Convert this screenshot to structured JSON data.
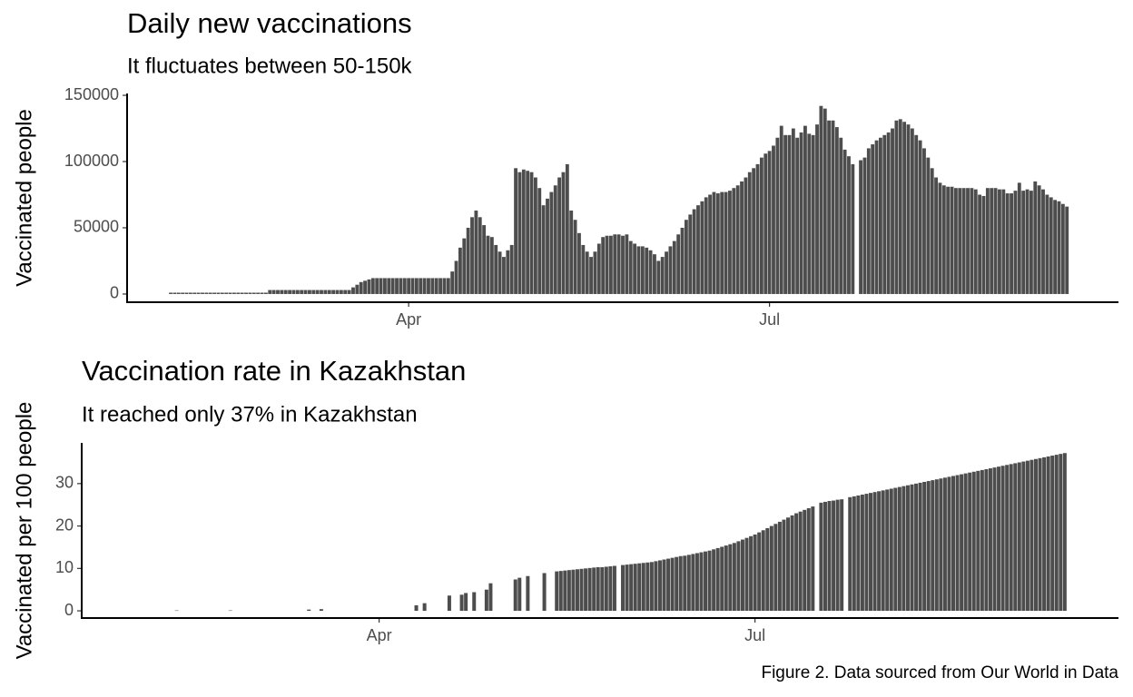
{
  "chart_data": [
    {
      "type": "bar",
      "title": "Daily new vaccinations",
      "subtitle": "It fluctuates between 50-150k",
      "y_label": "Vaccinated people",
      "color": "#4d4d4d",
      "xlim": [
        20,
        270
      ],
      "ylim": [
        -6200,
        151400
      ],
      "xticks": [
        {
          "value": 91,
          "label": "Apr"
        },
        {
          "value": 182,
          "label": "Jul"
        }
      ],
      "yticks": [
        0,
        50000,
        100000,
        150000
      ],
      "x": [
        31,
        32,
        33,
        34,
        35,
        36,
        37,
        38,
        39,
        40,
        41,
        42,
        43,
        44,
        45,
        46,
        47,
        48,
        49,
        50,
        51,
        52,
        53,
        54,
        55,
        56,
        57,
        58,
        59,
        60,
        61,
        62,
        63,
        64,
        65,
        66,
        67,
        68,
        69,
        70,
        71,
        72,
        73,
        74,
        75,
        76,
        77,
        78,
        79,
        80,
        81,
        82,
        83,
        84,
        85,
        86,
        87,
        88,
        89,
        90,
        91,
        92,
        93,
        94,
        95,
        96,
        97,
        98,
        99,
        100,
        101,
        102,
        103,
        104,
        105,
        106,
        107,
        108,
        109,
        110,
        111,
        112,
        113,
        114,
        115,
        116,
        117,
        118,
        119,
        120,
        121,
        122,
        123,
        124,
        125,
        126,
        127,
        128,
        129,
        130,
        131,
        132,
        133,
        134,
        135,
        136,
        137,
        138,
        139,
        140,
        141,
        142,
        143,
        144,
        145,
        146,
        147,
        148,
        149,
        150,
        151,
        152,
        153,
        154,
        155,
        156,
        157,
        158,
        159,
        160,
        161,
        162,
        163,
        164,
        165,
        166,
        167,
        168,
        169,
        170,
        171,
        172,
        173,
        174,
        175,
        176,
        177,
        178,
        179,
        180,
        181,
        182,
        183,
        184,
        185,
        186,
        187,
        188,
        189,
        190,
        191,
        192,
        193,
        194,
        195,
        196,
        197,
        198,
        199,
        200,
        201,
        202,
        203,
        204,
        205,
        206,
        207,
        208,
        209,
        210,
        211,
        212,
        213,
        214,
        215,
        216,
        217,
        218,
        219,
        220,
        221,
        222,
        223,
        224,
        225,
        226,
        227,
        228,
        229,
        230,
        231,
        232,
        233,
        234,
        235,
        236,
        237,
        238,
        239,
        240,
        241,
        242,
        243,
        244,
        245,
        246,
        247,
        248,
        249,
        250,
        251,
        252,
        253,
        254,
        255,
        256,
        257
      ],
      "values": [
        1000,
        1000,
        1000,
        1000,
        1000,
        1000,
        1000,
        1000,
        1000,
        1000,
        1000,
        1000,
        1000,
        1000,
        1000,
        1000,
        1000,
        1000,
        1000,
        1000,
        1000,
        1000,
        1000,
        1000,
        1000,
        3000,
        3000,
        3000,
        3000,
        3000,
        3000,
        3000,
        3000,
        3000,
        3000,
        3000,
        3000,
        3000,
        3000,
        3000,
        3000,
        3000,
        3000,
        3000,
        3000,
        3000,
        5000,
        7000,
        9000,
        10000,
        11000,
        12000,
        12000,
        12000,
        12000,
        12000,
        12000,
        12000,
        12000,
        12000,
        12000,
        12000,
        12000,
        12000,
        12000,
        12000,
        12000,
        12000,
        12000,
        12000,
        12000,
        17000,
        25000,
        35000,
        42000,
        50000,
        58000,
        63000,
        58000,
        52000,
        44000,
        43000,
        37000,
        32000,
        28000,
        33000,
        37000,
        95000,
        92000,
        94000,
        93000,
        92000,
        88000,
        80000,
        67000,
        72000,
        77000,
        82000,
        88000,
        92000,
        98000,
        63000,
        56000,
        46000,
        37000,
        32000,
        28000,
        32000,
        38000,
        43000,
        44000,
        44000,
        45000,
        45000,
        44000,
        45000,
        40000,
        38000,
        36000,
        36000,
        35000,
        33000,
        30000,
        25000,
        28000,
        32000,
        36000,
        40000,
        45000,
        50000,
        56000,
        60000,
        64000,
        67000,
        70000,
        73000,
        75000,
        77000,
        76000,
        77000,
        77000,
        78000,
        80000,
        82000,
        85000,
        88000,
        92000,
        95000,
        98000,
        103000,
        106000,
        108000,
        112000,
        118000,
        127000,
        120000,
        120000,
        125000,
        118000,
        122000,
        127000,
        121000,
        120000,
        128000,
        142000,
        140000,
        131000,
        131000,
        126000,
        118000,
        109000,
        104000,
        98000,
        null,
        101000,
        103000,
        110000,
        113000,
        116000,
        118000,
        120000,
        122000,
        125000,
        131000,
        132000,
        130000,
        128000,
        125000,
        120000,
        116000,
        110000,
        103000,
        95000,
        88000,
        84000,
        82000,
        81000,
        81000,
        80000,
        80000,
        80000,
        80000,
        80000,
        79000,
        75000,
        74000,
        80000,
        80000,
        80000,
        79000,
        79000,
        76000,
        76000,
        78000,
        84000,
        78000,
        79000,
        78000,
        85000,
        82000,
        79000,
        75000,
        73000,
        71000,
        70000,
        68000,
        66000
      ]
    },
    {
      "type": "bar",
      "title": "Vaccination rate in Kazakhstan",
      "subtitle": "It reached only 37% in Kazakhstan",
      "y_label": "Vaccinated per 100 people",
      "color": "#4d4d4d",
      "xlim": [
        19,
        270
      ],
      "ylim": [
        -1.7,
        39.6
      ],
      "xticks": [
        {
          "value": 91,
          "label": "Apr"
        },
        {
          "value": 182,
          "label": "Jul"
        }
      ],
      "yticks": [
        0,
        10,
        20,
        30
      ],
      "x": [
        31,
        32,
        33,
        34,
        35,
        36,
        37,
        38,
        39,
        40,
        41,
        42,
        43,
        44,
        45,
        46,
        47,
        48,
        49,
        50,
        51,
        52,
        53,
        54,
        55,
        56,
        57,
        58,
        59,
        60,
        61,
        62,
        63,
        64,
        65,
        66,
        67,
        68,
        69,
        70,
        71,
        72,
        73,
        74,
        75,
        76,
        77,
        78,
        79,
        80,
        81,
        82,
        83,
        84,
        85,
        86,
        87,
        88,
        89,
        90,
        91,
        92,
        93,
        94,
        95,
        96,
        97,
        98,
        99,
        100,
        101,
        102,
        103,
        104,
        105,
        106,
        107,
        108,
        109,
        110,
        111,
        112,
        113,
        114,
        115,
        116,
        117,
        118,
        119,
        120,
        121,
        122,
        123,
        124,
        125,
        126,
        127,
        128,
        129,
        130,
        131,
        132,
        133,
        134,
        135,
        136,
        137,
        138,
        139,
        140,
        141,
        142,
        143,
        144,
        145,
        146,
        147,
        148,
        149,
        150,
        151,
        152,
        153,
        154,
        155,
        156,
        157,
        158,
        159,
        160,
        161,
        162,
        163,
        164,
        165,
        166,
        167,
        168,
        169,
        170,
        171,
        172,
        173,
        174,
        175,
        176,
        177,
        178,
        179,
        180,
        181,
        182,
        183,
        184,
        185,
        186,
        187,
        188,
        189,
        190,
        191,
        192,
        193,
        194,
        195,
        196,
        197,
        198,
        199,
        200,
        201,
        202,
        203,
        204,
        205,
        206,
        207,
        208,
        209,
        210,
        211,
        212,
        213,
        214,
        215,
        216,
        217,
        218,
        219,
        220,
        221,
        222,
        223,
        224,
        225,
        226,
        227,
        228,
        229,
        230,
        231,
        232,
        233,
        234,
        235,
        236,
        237,
        238,
        239,
        240,
        241,
        242,
        243,
        244,
        245,
        246,
        247,
        248,
        249,
        250,
        251,
        252,
        253,
        254,
        255,
        256,
        257
      ],
      "values": [
        null,
        null,
        null,
        null,
        null,
        null,
        null,
        null,
        null,
        null,
        null,
        0.1,
        null,
        null,
        null,
        null,
        null,
        null,
        null,
        null,
        null,
        null,
        null,
        null,
        0.1,
        null,
        null,
        null,
        null,
        null,
        null,
        null,
        null,
        null,
        null,
        null,
        null,
        null,
        null,
        null,
        null,
        null,
        null,
        0.3,
        null,
        null,
        0.4,
        null,
        null,
        null,
        null,
        null,
        null,
        null,
        null,
        null,
        null,
        null,
        null,
        null,
        null,
        null,
        null,
        null,
        null,
        null,
        null,
        null,
        null,
        1.3,
        null,
        1.8,
        null,
        null,
        null,
        null,
        null,
        3.6,
        null,
        null,
        3.8,
        4.2,
        null,
        4.4,
        null,
        null,
        5,
        6.5,
        null,
        null,
        null,
        null,
        null,
        7.4,
        7.8,
        null,
        8.2,
        null,
        null,
        null,
        8.9,
        null,
        null,
        9.3,
        9.4,
        9.5,
        9.6,
        9.7,
        9.8,
        9.9,
        10.0,
        10.1,
        10.2,
        10.3,
        10.3,
        10.4,
        10.5,
        10.6,
        null,
        10.8,
        10.9,
        11.0,
        11.1,
        11.2,
        11.3,
        11.4,
        11.5,
        11.7,
        11.9,
        12.1,
        12.3,
        12.5,
        12.7,
        12.9,
        13.0,
        13.2,
        13.4,
        13.6,
        13.8,
        14.0,
        14.2,
        14.5,
        14.8,
        15.1,
        15.4,
        15.7,
        16.0,
        16.4,
        16.8,
        17.2,
        17.6,
        18.0,
        18.5,
        19.0,
        19.5,
        20.0,
        20.5,
        21.0,
        21.5,
        22.0,
        22.5,
        23.0,
        23.4,
        23.8,
        24.2,
        24.6,
        null,
        25.5,
        25.7,
        25.9,
        26.0,
        26.2,
        26.3,
        null,
        26.8,
        27.0,
        27.2,
        27.4,
        27.6,
        27.8,
        28.0,
        28.2,
        28.4,
        28.6,
        28.8,
        29.0,
        29.2,
        29.4,
        29.6,
        29.8,
        30.0,
        30.2,
        30.4,
        30.6,
        30.8,
        31.0,
        31.2,
        31.4,
        31.6,
        31.8,
        32.0,
        32.2,
        32.4,
        32.6,
        32.8,
        33.0,
        33.2,
        33.4,
        33.6,
        33.8,
        34.0,
        34.2,
        34.4,
        34.6,
        34.8,
        35.0,
        35.2,
        35.4,
        35.6,
        35.8,
        36.0,
        36.2,
        36.4,
        36.6,
        36.8,
        37.0,
        37.2
      ]
    }
  ],
  "caption": "Figure 2. Data sourced from Our World in Data"
}
